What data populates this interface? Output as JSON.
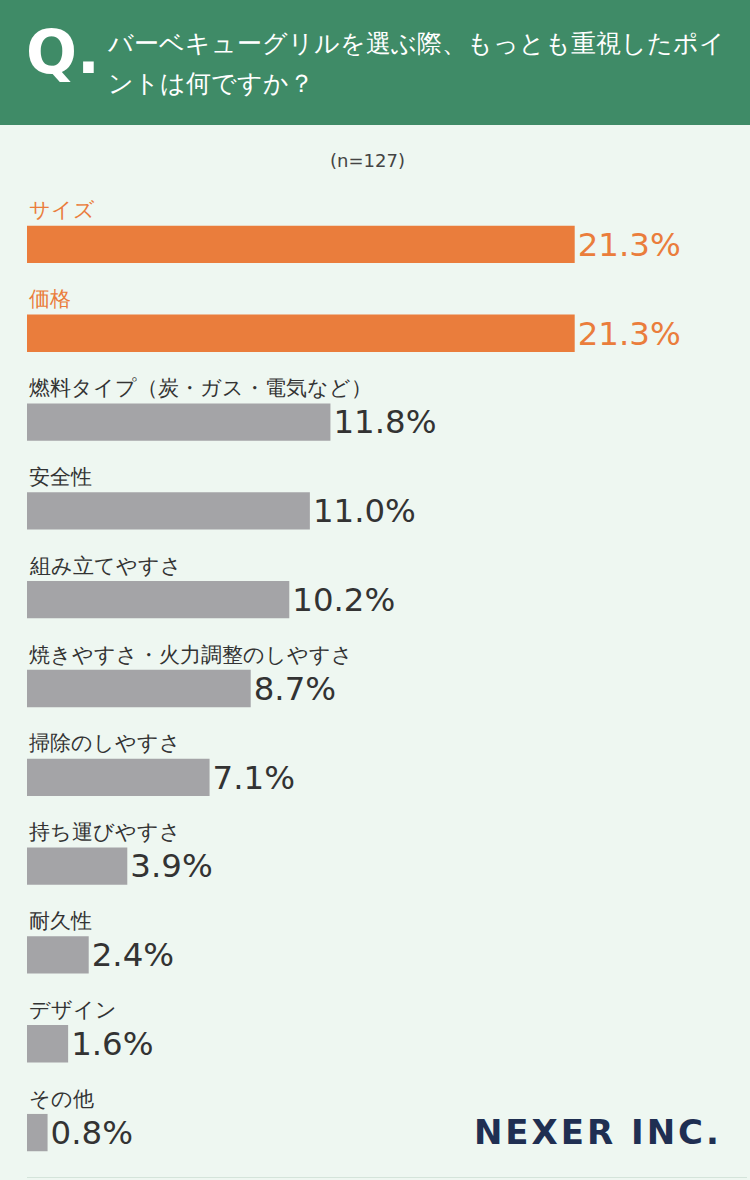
{
  "chart_data": {
    "type": "bar",
    "orientation": "horizontal",
    "title": "バーベキューグリルを選ぶ際、もっとも重視したポイントは何ですか？",
    "subtitle": "(n=127)",
    "annotations": [
      "Q.",
      "NEXER INC."
    ],
    "categories": [
      "サイズ",
      "価格",
      "燃料タイプ（炭・ガス・電気など）",
      "安全性",
      "組み立てやすさ",
      "焼きやすさ・火力調整のしやすさ",
      "掃除のしやすさ",
      "持ち運びやすさ",
      "耐久性",
      "デザイン",
      "その他"
    ],
    "values": [
      21.3,
      21.3,
      11.8,
      11.0,
      10.2,
      8.7,
      7.1,
      3.9,
      2.4,
      1.6,
      0.8
    ],
    "value_labels": [
      "21.3%",
      "21.3%",
      "11.8%",
      "11.0%",
      "10.2%",
      "8.7%",
      "7.1%",
      "3.9%",
      "2.4%",
      "1.6%",
      "0.8%"
    ],
    "colors": [
      "#ea7d3c",
      "#ea7d3c",
      "#a4a4a7",
      "#a4a4a7",
      "#a4a4a7",
      "#a4a4a7",
      "#a4a4a7",
      "#a4a4a7",
      "#a4a4a7",
      "#a4a4a7",
      "#a4a4a7"
    ],
    "data_labels": true,
    "tick_labels": false,
    "grid": false,
    "xlim": [
      0,
      28
    ],
    "xticks": []
  }
}
